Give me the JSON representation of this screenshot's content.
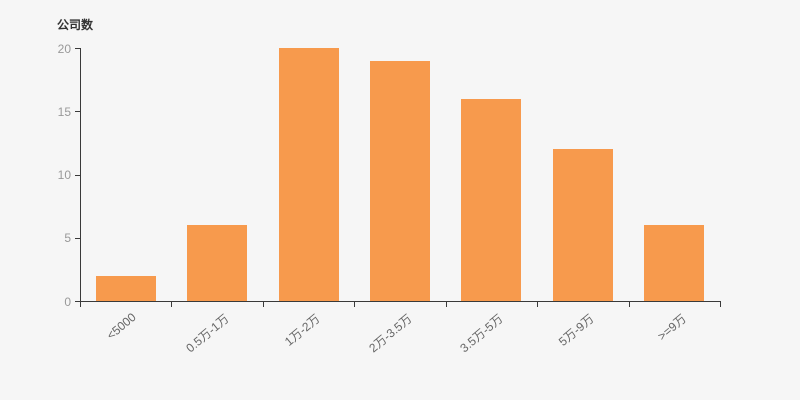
{
  "chart_data": {
    "type": "bar",
    "title": "公司数",
    "ylabel": "公司数",
    "xlabel": "",
    "categories": [
      "<5000",
      "0.5万-1万",
      "1万-2万",
      "2万-3.5万",
      "3.5万-5万",
      "5万-9万",
      ">=9万"
    ],
    "values": [
      2,
      6,
      20,
      19,
      16,
      12,
      6
    ],
    "ylim": [
      0,
      20
    ],
    "yticks": [
      0,
      5,
      10,
      15,
      20
    ],
    "x_label_rotation_deg": 40,
    "grid": "off",
    "legend": "none",
    "bar_color": "#f79a4d",
    "background_color": "#f6f6f6",
    "axis_color": "#3a3a3a",
    "title_color": "#333333",
    "y_tick_label_color": "#999999",
    "x_label_color": "#666666"
  }
}
